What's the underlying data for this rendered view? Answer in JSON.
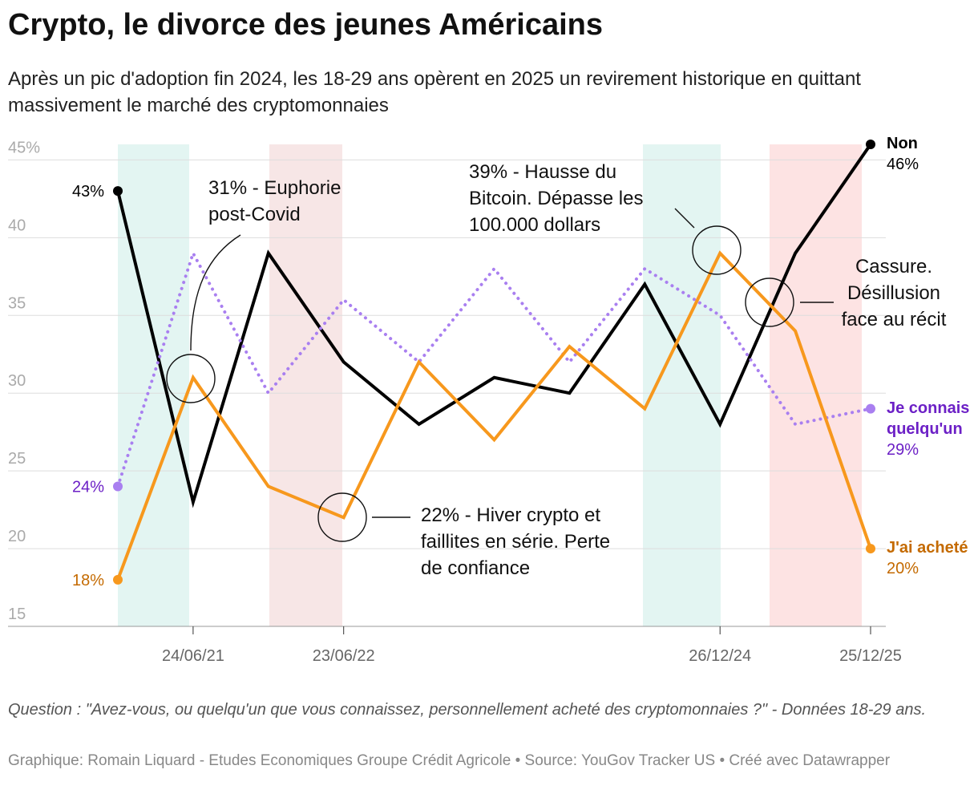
{
  "title": "Crypto, le divorce des jeunes Américains",
  "subtitle": "Après un pic d'adoption fin 2024, les 18-29 ans opèrent en 2025 un revirement historique en quittant massivement le marché des cryptomonnaies",
  "chart_data": {
    "type": "line",
    "categories": [
      null,
      "24/06/21",
      null,
      "23/06/22",
      null,
      null,
      null,
      null,
      "26/12/24",
      null,
      "25/12/25"
    ],
    "ylim": [
      15,
      46
    ],
    "yticks": [
      15,
      20,
      25,
      30,
      35,
      40,
      {
        "value": 45,
        "label": "45%"
      }
    ],
    "grid": true,
    "series": [
      {
        "name": "Non",
        "color": "#000000",
        "label_color": "#000000",
        "dash": false,
        "values": [
          43,
          23,
          39,
          32,
          28,
          31,
          30,
          37,
          28,
          39,
          46
        ],
        "value_labels": [
          "43%",
          null,
          null,
          null,
          null,
          null,
          null,
          null,
          null,
          null,
          "46%"
        ]
      },
      {
        "name": "Je connais quelqu'un",
        "color": "#a97ff0",
        "label_color": "#6c20c6",
        "dash": true,
        "values": [
          24,
          39,
          30,
          36,
          32,
          38,
          32,
          38,
          35,
          28,
          29
        ],
        "value_labels": [
          "24%",
          null,
          null,
          null,
          null,
          null,
          null,
          null,
          null,
          null,
          "29%"
        ]
      },
      {
        "name": "J'ai acheté",
        "color": "#f7981d",
        "label_color": "#c46a00",
        "dash": false,
        "values": [
          18,
          31,
          24,
          22,
          32,
          27,
          33,
          29,
          39,
          34,
          20
        ],
        "value_labels": [
          "18%",
          null,
          null,
          null,
          null,
          null,
          null,
          null,
          null,
          null,
          "20%"
        ]
      }
    ],
    "annotations": [
      "31% - Euphorie post-Covid",
      "39% - Hausse du Bitcoin. Dépasse les 100.000 dollars",
      "22% - Hiver crypto et faillites en série. Perte de confiance",
      "Cassure. Désillusion face au récit"
    ]
  },
  "notes": "Question : \"Avez-vous, ou quelqu'un que vous connaissez, personnellement acheté des cryptomonnaies ?\" - Données 18-29 ans.",
  "source": "Graphique: Romain Liquard - Etudes Economiques Groupe Crédit Agricole • Source: YouGov Tracker US • Créé avec Datawrapper"
}
